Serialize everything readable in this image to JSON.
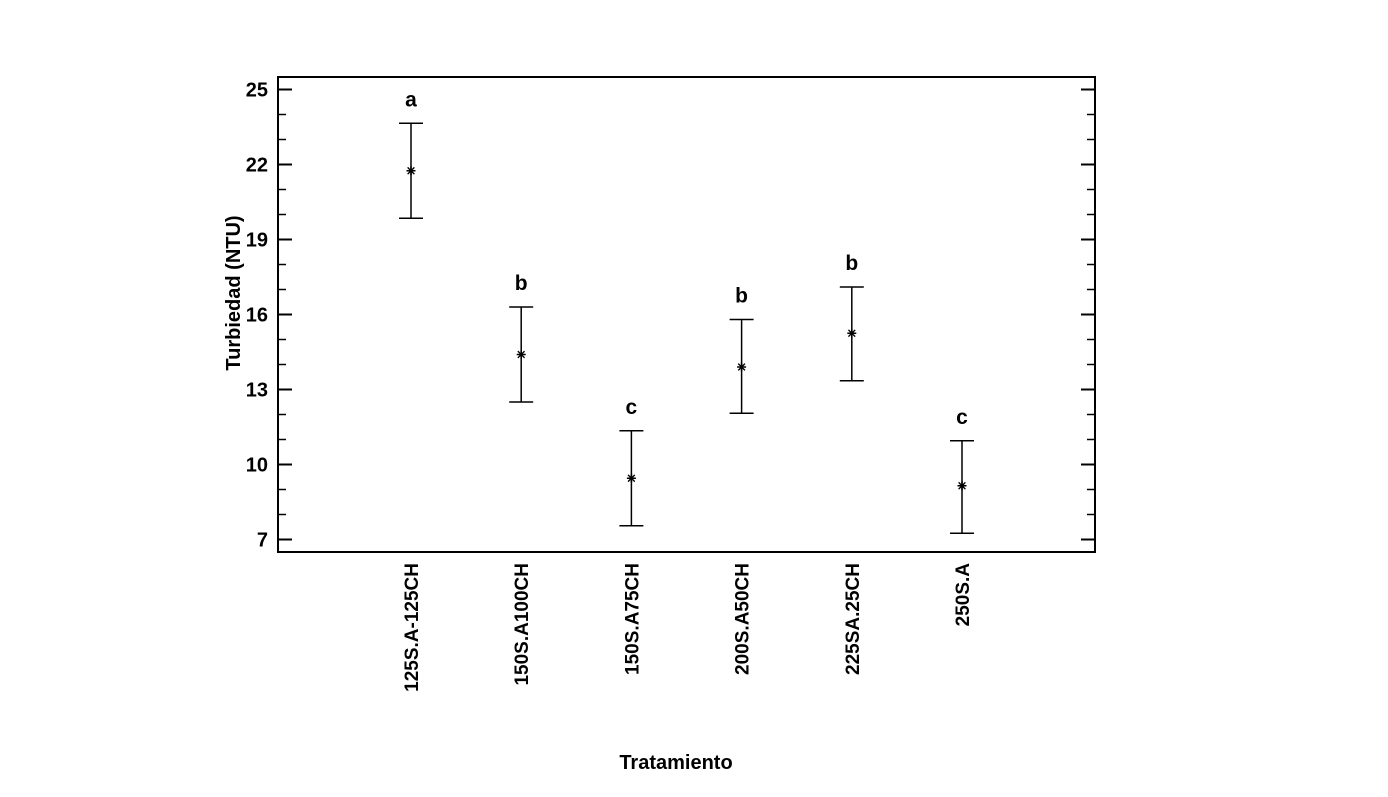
{
  "chart_data": {
    "type": "scatter",
    "variant": "means-with-intervals",
    "title": "",
    "xlabel": "Tratamiento",
    "ylabel": "Turbiedad (NTU)",
    "ylim": [
      6.5,
      25.5
    ],
    "yticks": [
      "7",
      "10",
      "13",
      "16",
      "19",
      "22",
      "25"
    ],
    "grid": false,
    "categories": [
      "125S.A-125CH",
      "150S.A100CH",
      "150S.A75CH",
      "200S.A50CH",
      "225SA.25CH",
      "250S.A"
    ],
    "means": [
      21.75,
      14.4,
      9.45,
      13.9,
      15.25,
      9.15
    ],
    "lower": [
      19.85,
      12.5,
      7.55,
      12.05,
      13.35,
      7.25
    ],
    "upper": [
      23.65,
      16.3,
      11.35,
      15.8,
      17.1,
      10.95
    ],
    "groups": [
      "a",
      "b",
      "c",
      "b",
      "b",
      "c"
    ]
  }
}
